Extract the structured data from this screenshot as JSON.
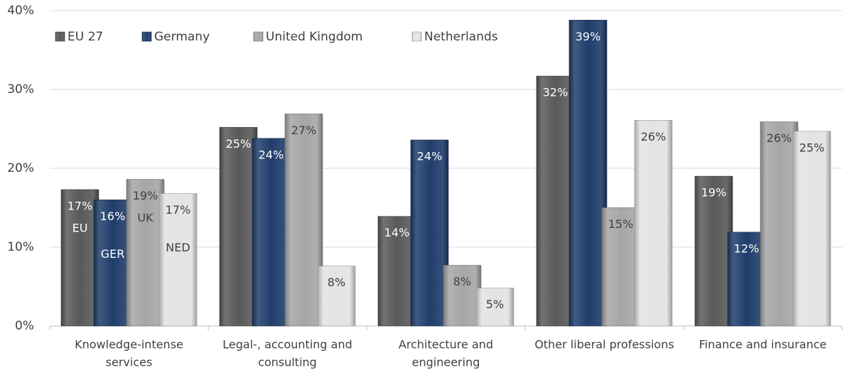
{
  "chart_data": {
    "type": "bar",
    "categories": [
      [
        "Knowledge-intense",
        "services"
      ],
      [
        "Legal-, accounting and",
        "consulting"
      ],
      [
        "Architecture and",
        "engineering"
      ],
      [
        "Other liberal professions"
      ],
      [
        "Finance and insurance"
      ]
    ],
    "series": [
      {
        "name": "EU 27",
        "color": "#595959",
        "label_color": "#ffffff",
        "values": [
          17.3,
          25.2,
          13.9,
          31.7,
          19.0
        ],
        "value_labels": [
          "17%",
          "25%",
          "14%",
          "32%",
          "19%"
        ],
        "annotation": "EU"
      },
      {
        "name": "Germany",
        "color": "#1f3d6b",
        "label_color": "#ffffff",
        "values": [
          16.0,
          23.8,
          23.6,
          38.8,
          11.9
        ],
        "value_labels": [
          "16%",
          "24%",
          "24%",
          "39%",
          "12%"
        ],
        "annotation": "GER"
      },
      {
        "name": "United Kingdom",
        "color": "#a6a6a6",
        "label_color": "#404040",
        "values": [
          18.6,
          26.9,
          7.7,
          15.0,
          25.9
        ],
        "value_labels": [
          "19%",
          "27%",
          "8%",
          "15%",
          "26%"
        ],
        "annotation": "UK"
      },
      {
        "name": "Netherlands",
        "color": "#e3e3e3",
        "label_color": "#404040",
        "values": [
          16.8,
          7.6,
          4.8,
          26.1,
          24.7
        ],
        "value_labels": [
          "17%",
          "8%",
          "5%",
          "26%",
          "25%"
        ],
        "annotation": "NED"
      }
    ],
    "ylim": [
      0,
      40
    ],
    "yticks": [
      {
        "value": 0,
        "label": "0%"
      },
      {
        "value": 10,
        "label": "10%"
      },
      {
        "value": 20,
        "label": "20%"
      },
      {
        "value": 30,
        "label": "30%"
      },
      {
        "value": 40,
        "label": "40%"
      }
    ],
    "grid": true,
    "legend": "top-left"
  }
}
